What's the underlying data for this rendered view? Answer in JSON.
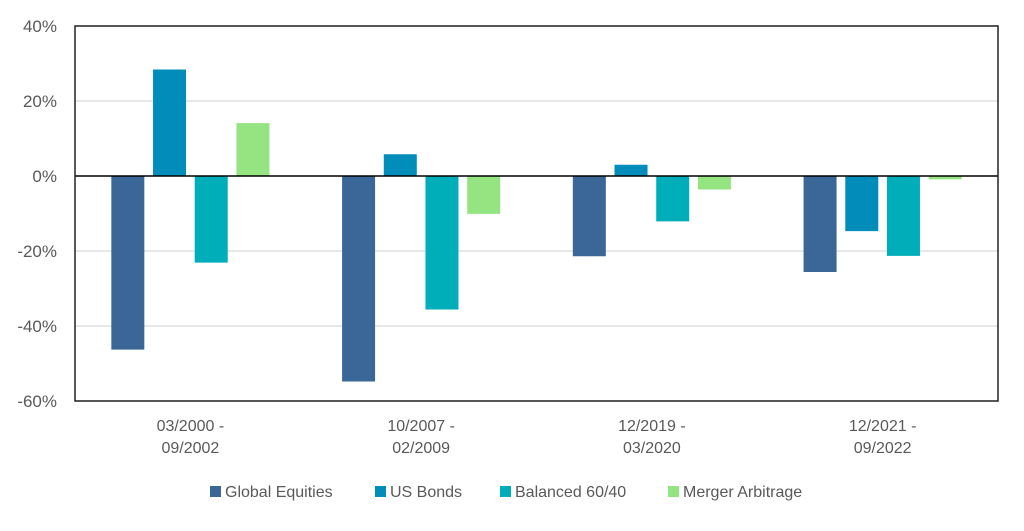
{
  "chart_data": {
    "type": "bar",
    "title": "",
    "xlabel": "",
    "ylabel": "",
    "ylim": [
      -60,
      40
    ],
    "yticks": [
      "40%",
      "20%",
      "0%",
      "-20%",
      "-40%",
      "-60%"
    ],
    "ytick_values": [
      40,
      20,
      0,
      -20,
      -40,
      -60
    ],
    "grid": true,
    "legend": "bottom",
    "categories": [
      [
        "03/2000 -",
        "09/2002"
      ],
      [
        "10/2007 -",
        "02/2009"
      ],
      [
        "12/2019 -",
        "03/2020"
      ],
      [
        "12/2021 -",
        "09/2022"
      ]
    ],
    "series": [
      {
        "name": "Global Equities",
        "color": "#3A6798",
        "values": [
          -46.3,
          -54.8,
          -21.4,
          -25.6
        ]
      },
      {
        "name": "US Bonds",
        "color": "#008DBA",
        "values": [
          28.4,
          5.8,
          3.0,
          -14.7
        ]
      },
      {
        "name": "Balanced 60/40",
        "color": "#00AEBA",
        "values": [
          -23.1,
          -35.6,
          -12.1,
          -21.3
        ]
      },
      {
        "name": "Merger Arbitrage",
        "color": "#94E581",
        "values": [
          14.1,
          -10.1,
          -3.6,
          -0.9
        ]
      }
    ]
  }
}
